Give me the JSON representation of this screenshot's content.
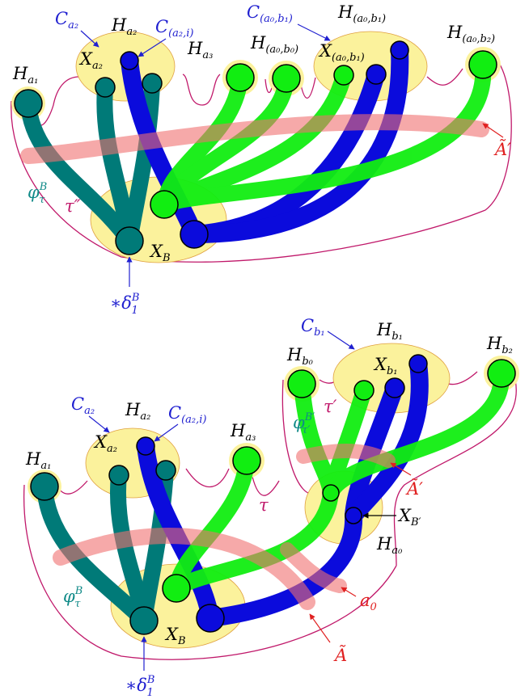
{
  "colors": {
    "teal": "#007a78",
    "green": "#11ee11",
    "blue": "#0b0bdc",
    "red": "#f07070",
    "yellow": "#fbf29c",
    "magenta": "#c0186a",
    "label_blue": "#2020d0",
    "label_red": "#e02020",
    "label_teal": "#108a88",
    "black": "#000000"
  },
  "top": {
    "C_a2": {
      "base": "C",
      "sub": "a₂"
    },
    "H_a2": {
      "base": "H",
      "sub": "a₂"
    },
    "C_a2_i": {
      "base": "C",
      "sub": "(a₂,i)"
    },
    "C_a0_b1": {
      "base": "C",
      "sub": "(a₀,b₁)"
    },
    "H_a0_b1": {
      "base": "H",
      "sub": "(a₀,b₁)"
    },
    "H_a0_b0": {
      "base": "H",
      "sub": "(a₀,b₀)"
    },
    "X_a0_b1": {
      "base": "X",
      "sub": "(a₀,b₁)"
    },
    "H_a0_b2": {
      "base": "H",
      "sub": "(a₀,b₂)"
    },
    "H_a1": {
      "base": "H",
      "sub": "a₁"
    },
    "X_a2": {
      "base": "X",
      "sub": "a₂"
    },
    "H_a3": {
      "base": "H",
      "sub": "a₃"
    },
    "A_tilde_prime": "Ã′",
    "phi": {
      "base": "φ",
      "sup": "B",
      "sub": "τ"
    },
    "tau_dprime": "τ″",
    "X_B": {
      "base": "X",
      "sub": "B"
    },
    "delta": {
      "base": "∗δ",
      "sup": "B",
      "sub": "1"
    }
  },
  "bottom": {
    "C_b1": {
      "base": "C",
      "sub": "b₁"
    },
    "H_b1": {
      "base": "H",
      "sub": "b₁"
    },
    "H_b0": {
      "base": "H",
      "sub": "b₀"
    },
    "X_b1": {
      "base": "X",
      "sub": "b₁"
    },
    "H_b2": {
      "base": "H",
      "sub": "b₂"
    },
    "tau_prime": "τ′",
    "phi_prime": {
      "base": "φ",
      "sup": "B′",
      "sub": "τ′"
    },
    "C_a2": {
      "base": "C",
      "sub": "a₂"
    },
    "H_a2": {
      "base": "H",
      "sub": "a₂"
    },
    "C_a2_i": {
      "base": "C",
      "sub": "(a₂,i)"
    },
    "X_a2": {
      "base": "X",
      "sub": "a₂"
    },
    "H_a3": {
      "base": "H",
      "sub": "a₃"
    },
    "H_a1": {
      "base": "H",
      "sub": "a₁"
    },
    "A_tilde_prime": "Ã′",
    "tau": "τ",
    "X_B_prime": {
      "base": "X",
      "sub": "B′"
    },
    "H_a0": {
      "base": "H",
      "sub": "a₀"
    },
    "a0": {
      "base": "a",
      "sub": "0"
    },
    "phi": {
      "base": "φ",
      "sup": "B",
      "sub": "τ"
    },
    "X_B": {
      "base": "X",
      "sub": "B"
    },
    "A_tilde": "Ã",
    "delta": {
      "base": "∗δ",
      "sup": "B",
      "sub": "1"
    }
  }
}
